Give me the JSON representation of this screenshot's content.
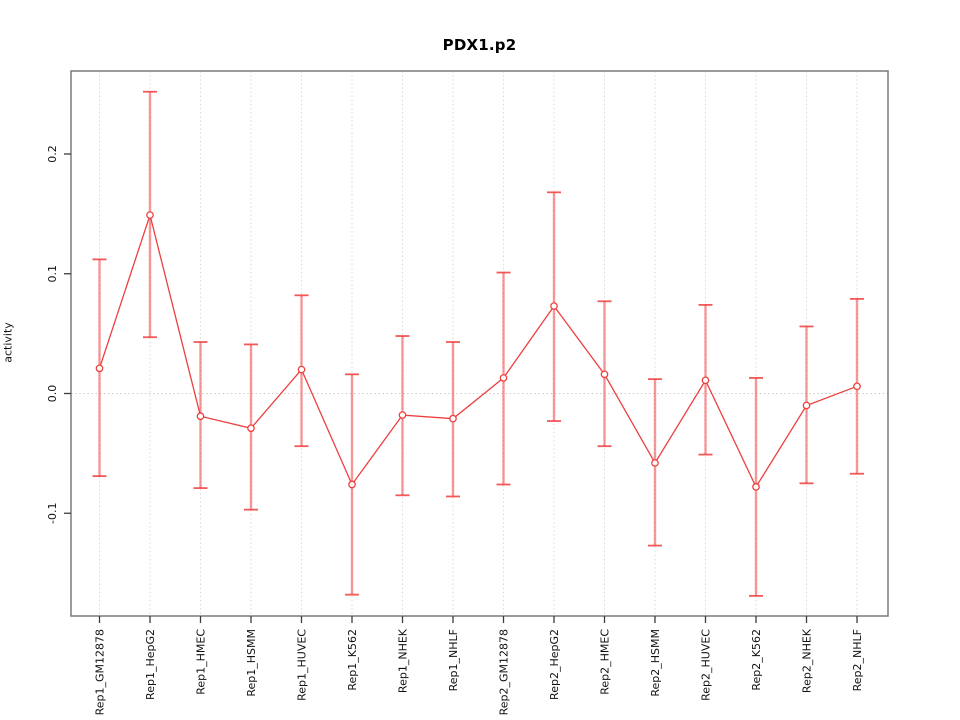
{
  "title": "PDX1.p2",
  "chart_data": {
    "type": "line",
    "title": "PDX1.p2",
    "xlabel": "",
    "ylabel": "activity",
    "ylim": [
      -0.186,
      0.269
    ],
    "grid": "dotted vertical line at each category; dotted horizontal line at y=0",
    "legend": "none",
    "marker": "open-circle",
    "error_bars": true,
    "y_ticks": [
      {
        "value": -0.1,
        "label": "-0.1"
      },
      {
        "value": 0.0,
        "label": "0.0"
      },
      {
        "value": 0.1,
        "label": "0.1"
      },
      {
        "value": 0.2,
        "label": "0.2"
      }
    ],
    "categories": [
      "Rep1_GM12878",
      "Rep1_HepG2",
      "Rep1_HMEC",
      "Rep1_HSMM",
      "Rep1_HUVEC",
      "Rep1_K562",
      "Rep1_NHEK",
      "Rep1_NHLF",
      "Rep2_GM12878",
      "Rep2_HepG2",
      "Rep2_HMEC",
      "Rep2_HSMM",
      "Rep2_HUVEC",
      "Rep2_K562",
      "Rep2_NHEK",
      "Rep2_NHLF"
    ],
    "series": [
      {
        "name": "activity",
        "values": [
          0.021,
          0.149,
          -0.019,
          -0.029,
          0.02,
          -0.076,
          -0.018,
          -0.021,
          0.013,
          0.073,
          0.016,
          -0.058,
          0.011,
          -0.078,
          -0.01,
          0.006
        ],
        "upper": [
          0.112,
          0.252,
          0.043,
          0.041,
          0.082,
          0.016,
          0.048,
          0.043,
          0.101,
          0.168,
          0.077,
          0.012,
          0.074,
          0.013,
          0.056,
          0.079
        ],
        "lower": [
          -0.069,
          0.047,
          -0.079,
          -0.097,
          -0.044,
          -0.168,
          -0.085,
          -0.086,
          -0.076,
          -0.023,
          -0.044,
          -0.127,
          -0.051,
          -0.169,
          -0.075,
          -0.067
        ]
      }
    ],
    "colors": {
      "line": "#ee3f3f",
      "marker_stroke": "#ee3f3f",
      "marker_fill": "#ffffff",
      "error_bar": "rgba(242,70,70,0.55)",
      "error_cap": "rgba(240,60,60,0.85)",
      "gridline": "#dadada",
      "zero_line": "#c9c9c9",
      "box": "#7a7a7a",
      "tick": "#3c3c3c",
      "text": "#111111"
    }
  }
}
